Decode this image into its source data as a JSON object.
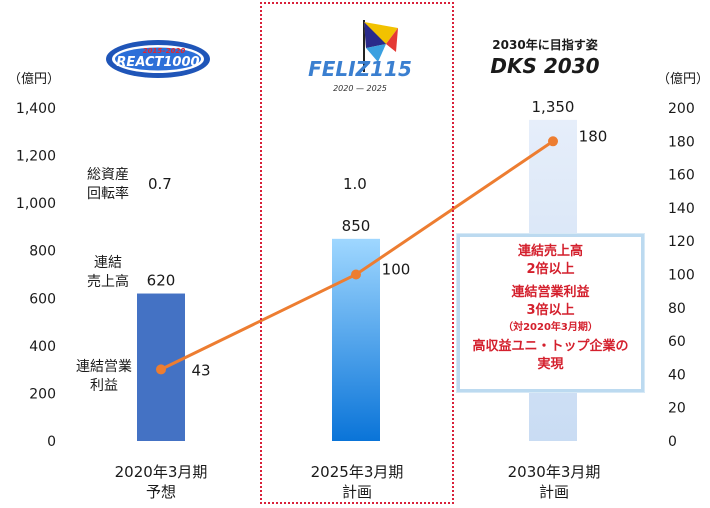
{
  "chart_data": {
    "type": "bar+line",
    "categories": [
      "2020年3月期\n予想",
      "2025年3月期\n計画",
      "2030年3月期\n計画"
    ],
    "category_lines": [
      [
        "2020年3月期",
        "予想"
      ],
      [
        "2025年3月期",
        "計画"
      ],
      [
        "2030年3月期",
        "計画"
      ]
    ],
    "series": [
      {
        "name": "連結売上高",
        "type": "bar",
        "axis": "left",
        "values": [
          620,
          850,
          1350
        ],
        "labels": [
          "620",
          "850",
          "1,350"
        ]
      },
      {
        "name": "連結営業利益",
        "type": "line",
        "axis": "right",
        "values": [
          43,
          100,
          180
        ],
        "labels": [
          "43",
          "100",
          "180"
        ]
      }
    ],
    "left_axis": {
      "unit": "（億円）",
      "ylim": [
        0,
        1400
      ],
      "ticks": [
        "0",
        "200",
        "400",
        "600",
        "800",
        "1,000",
        "1,200",
        "1,400"
      ]
    },
    "right_axis": {
      "unit": "（億円）",
      "ylim": [
        0,
        200
      ],
      "ticks": [
        "0",
        "20",
        "40",
        "60",
        "80",
        "100",
        "120",
        "140",
        "160",
        "180",
        "200"
      ]
    },
    "total_asset_turnover": {
      "label": [
        "総資産",
        "回転率"
      ],
      "values": [
        "0.7",
        "1.0"
      ]
    },
    "row_labels": {
      "sales": [
        "連結",
        "売上高"
      ],
      "profit": [
        "連結営業",
        "利益"
      ]
    },
    "colors": {
      "bar_2020": "#4472c4",
      "bar_2025_top": "#9fd7ff",
      "bar_2025_bottom": "#0a74d8",
      "bar_2030": "#c9dcf3",
      "line": "#ed7d31",
      "dashed_box": "#d9213a",
      "callout_text": "#d4202d"
    }
  },
  "logos": {
    "react": {
      "years": "2015–2020",
      "name": "REACT1000"
    },
    "feliz": {
      "name": "FELIZ115",
      "years": "2020 — 2025"
    },
    "dks": {
      "heading": "2030年に目指す姿",
      "name": "DKS 2030"
    }
  },
  "callout": {
    "lines": [
      "連結売上高",
      "2倍以上",
      "連結営業利益",
      "3倍以上",
      "（対2020年3月期）",
      "高収益ユニ・トップ企業の",
      "実現"
    ]
  }
}
